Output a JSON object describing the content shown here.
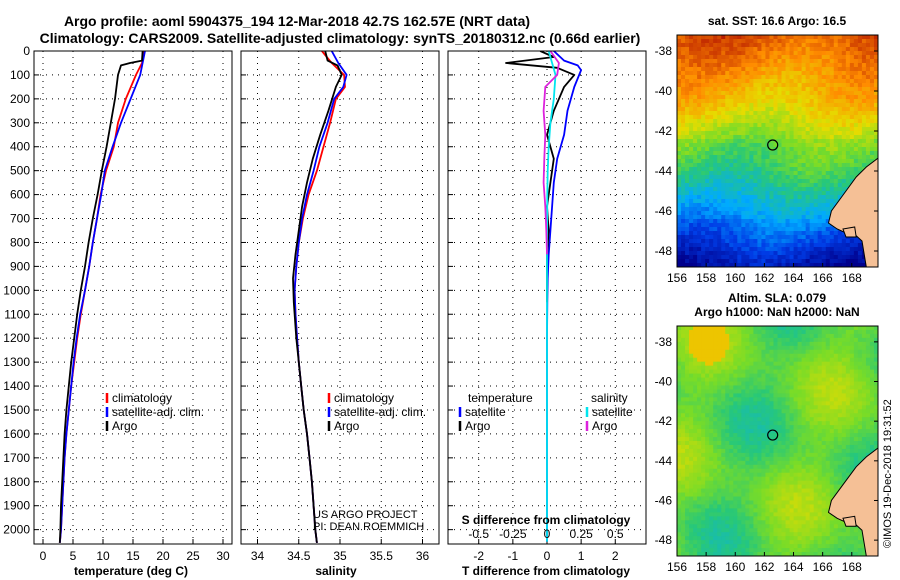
{
  "header": {
    "title_line1": "Argo profile: aoml 5904375_194 12-Mar-2018 42.7S 162.57E (NRT data)",
    "title_line2": "Climatology: CARS2009. Satellite-adjusted climatology: synTS_20180312.nc (0.66d earlier)"
  },
  "colors": {
    "climatology": "#ff0000",
    "satellite": "#0000ff",
    "argo": "#000000",
    "s_satellite": "#00e5ee",
    "s_argo": "#dd22dd",
    "dot_grid": "#000000",
    "land": "#f5c096"
  },
  "chart_data": [
    {
      "id": "temperature",
      "type": "line",
      "xlabel": "temperature (deg C)",
      "xlim": [
        -1.5,
        31.5
      ],
      "xticks": [
        0,
        5,
        10,
        15,
        20,
        25,
        30
      ],
      "ylim": [
        2060,
        0
      ],
      "yticks": [
        0,
        100,
        200,
        300,
        400,
        500,
        600,
        700,
        800,
        900,
        1000,
        1100,
        1200,
        1300,
        1400,
        1500,
        1600,
        1700,
        1800,
        1900,
        2000
      ],
      "grid": true,
      "legend": [
        "climatology",
        "satellite-adj. clim.",
        "Argo"
      ],
      "series": [
        {
          "name": "climatology",
          "color": "#ff0000",
          "x": [
            16.8,
            16.5,
            15.5,
            13.8,
            12.5,
            11.8,
            10.5,
            9.6,
            9.0,
            8.3,
            7.7,
            7.0,
            6.3,
            5.7,
            5.2,
            4.7,
            4.3,
            3.9,
            3.6,
            3.4,
            3.2,
            3.0,
            2.9,
            2.8
          ],
          "y": [
            0,
            50,
            100,
            200,
            300,
            400,
            500,
            600,
            700,
            800,
            900,
            1000,
            1100,
            1200,
            1300,
            1400,
            1500,
            1600,
            1700,
            1800,
            1900,
            2000,
            2030,
            2055
          ]
        },
        {
          "name": "satellite-adj. clim.",
          "color": "#0000ff",
          "x": [
            17.0,
            16.6,
            16.2,
            14.6,
            13.0,
            11.6,
            10.3,
            9.7,
            9.0,
            8.3,
            7.7,
            7.0,
            6.2,
            5.6,
            5.1,
            4.7,
            4.3,
            3.9,
            3.6,
            3.4,
            3.2,
            3.0,
            2.9,
            2.8
          ],
          "y": [
            0,
            50,
            100,
            200,
            300,
            400,
            500,
            600,
            700,
            800,
            900,
            1000,
            1100,
            1200,
            1300,
            1400,
            1500,
            1600,
            1700,
            1800,
            1900,
            2000,
            2030,
            2055
          ]
        },
        {
          "name": "Argo",
          "color": "#000000",
          "x": [
            16.6,
            16.5,
            14.5,
            13.0,
            12.5,
            12.0,
            11.3,
            10.6,
            9.8,
            9.1,
            8.3,
            7.6,
            7.0,
            6.3,
            5.7,
            5.2,
            4.7,
            4.3,
            3.9,
            3.6,
            3.4,
            3.2,
            3.0,
            2.9,
            2.8
          ],
          "y": [
            0,
            40,
            50,
            60,
            100,
            200,
            300,
            400,
            500,
            600,
            700,
            800,
            900,
            1000,
            1100,
            1200,
            1300,
            1400,
            1500,
            1600,
            1700,
            1800,
            1900,
            2000,
            2055
          ]
        }
      ]
    },
    {
      "id": "salinity",
      "type": "line",
      "xlabel": "salinity",
      "xlim": [
        33.8,
        36.2
      ],
      "xticks": [
        34,
        34.5,
        35,
        35.5,
        36
      ],
      "ylim": [
        2060,
        0
      ],
      "grid": true,
      "legend": [
        "climatology",
        "satellite-adj. clim.",
        "Argo"
      ],
      "series": [
        {
          "name": "climatology",
          "color": "#ff0000",
          "x": [
            34.78,
            34.9,
            35.05,
            35.06,
            34.95,
            34.88,
            34.8,
            34.72,
            34.62,
            34.55,
            34.5,
            34.47,
            34.45,
            34.46,
            34.48,
            34.5,
            34.53,
            34.56,
            34.6,
            34.63,
            34.66,
            34.68,
            34.7,
            34.72
          ],
          "y": [
            0,
            50,
            100,
            150,
            200,
            300,
            400,
            500,
            600,
            700,
            800,
            900,
            1000,
            1100,
            1200,
            1300,
            1400,
            1500,
            1600,
            1700,
            1800,
            1900,
            2000,
            2055
          ]
        },
        {
          "name": "satellite-adj. clim.",
          "color": "#0000ff",
          "x": [
            34.9,
            34.98,
            35.08,
            35.04,
            34.93,
            34.85,
            34.75,
            34.68,
            34.6,
            34.54,
            34.5,
            34.47,
            34.45,
            34.46,
            34.48,
            34.5,
            34.53,
            34.56,
            34.6,
            34.63,
            34.66,
            34.68,
            34.7,
            34.72
          ],
          "y": [
            0,
            50,
            100,
            150,
            200,
            300,
            400,
            500,
            600,
            700,
            800,
            900,
            1000,
            1100,
            1200,
            1300,
            1400,
            1500,
            1600,
            1700,
            1800,
            1900,
            2000,
            2055
          ]
        },
        {
          "name": "Argo",
          "color": "#000000",
          "x": [
            34.82,
            34.85,
            34.97,
            35.02,
            34.95,
            34.86,
            34.76,
            34.67,
            34.6,
            34.54,
            34.5,
            34.46,
            34.43,
            34.44,
            34.47,
            34.5,
            34.53,
            34.56,
            34.6,
            34.63,
            34.66,
            34.68,
            34.7,
            34.72
          ],
          "y": [
            0,
            40,
            60,
            100,
            150,
            250,
            350,
            450,
            550,
            650,
            750,
            850,
            950,
            1050,
            1200,
            1300,
            1400,
            1500,
            1600,
            1700,
            1800,
            1900,
            2000,
            2055
          ]
        }
      ]
    },
    {
      "id": "difference",
      "type": "line",
      "xlabel": "T difference from climatology",
      "xlim": [
        -2.9,
        2.9
      ],
      "xticks": [
        -2,
        -1,
        0,
        1,
        2
      ],
      "s_xlabel": "S difference from climatology",
      "s_ticks": [
        "-0.5",
        "-0.25",
        "0",
        "0.25",
        "0.5"
      ],
      "ylim": [
        2060,
        0
      ],
      "grid": true,
      "legend_t_header": "temperature",
      "legend_s_header": "salinity",
      "legend": [
        "satellite",
        "Argo",
        "satellite",
        "Argo"
      ],
      "series": [
        {
          "name": "T satellite",
          "color": "#0000ff",
          "x": [
            0.2,
            0.5,
            0.9,
            1.0,
            0.8,
            0.6,
            0.5,
            0.3,
            0.2,
            0.15,
            0.1,
            0.05,
            0.02,
            0.01,
            0,
            0,
            0
          ],
          "y": [
            0,
            40,
            60,
            80,
            150,
            250,
            350,
            450,
            550,
            650,
            750,
            850,
            950,
            1050,
            1200,
            1500,
            2050
          ]
        },
        {
          "name": "T Argo",
          "color": "#000000",
          "x": [
            -0.2,
            0.2,
            -1.2,
            0.3,
            0.8,
            0.5,
            0.2,
            0.0,
            0.2,
            0.1,
            0.0,
            0.05,
            0.0,
            0.0,
            0.0
          ],
          "y": [
            0,
            25,
            50,
            70,
            100,
            150,
            250,
            350,
            450,
            550,
            650,
            750,
            850,
            950,
            1050
          ]
        },
        {
          "name": "S satellite",
          "color": "#00e5ee",
          "x": [
            0.05,
            0.15,
            0.25,
            0.2,
            0.1,
            0.05,
            0.02,
            0.01,
            0,
            0,
            0
          ],
          "y": [
            0,
            50,
            100,
            200,
            300,
            400,
            500,
            600,
            800,
            1200,
            2050
          ]
        },
        {
          "name": "S Argo",
          "color": "#dd22dd",
          "x": [
            0.1,
            0.35,
            0.3,
            -0.05,
            -0.1,
            -0.05,
            -0.08,
            -0.1,
            -0.05,
            -0.02,
            0.0
          ],
          "y": [
            0,
            50,
            100,
            150,
            250,
            350,
            450,
            550,
            650,
            750,
            850
          ]
        }
      ]
    },
    {
      "id": "map_sst",
      "type": "heatmap",
      "title": "sat. SST: 16.6 Argo: 16.5",
      "xticks": [
        "156",
        "158",
        "160",
        "162",
        "164",
        "166",
        "168"
      ],
      "yticks": [
        "-38",
        "-40",
        "-42",
        "-44",
        "-46",
        "-48"
      ],
      "xlim": [
        156,
        169.8
      ],
      "ylim": [
        -48.8,
        -37.2
      ],
      "marker": {
        "lon": 162.57,
        "lat": -42.7
      }
    },
    {
      "id": "map_sla",
      "type": "heatmap",
      "title_line1": "Altim. SLA: 0.079",
      "title_line2": "Argo h1000: NaN h2000: NaN",
      "xticks": [
        "156",
        "158",
        "160",
        "162",
        "164",
        "166",
        "168"
      ],
      "yticks": [
        "-38",
        "-40",
        "-42",
        "-44",
        "-46",
        "-48"
      ],
      "xlim": [
        156,
        169.8
      ],
      "ylim": [
        -48.8,
        -37.2
      ],
      "marker": {
        "lon": 162.57,
        "lat": -42.7
      }
    }
  ],
  "annotations": {
    "project_line1": "US ARGO PROJECT",
    "project_line2": "PI: DEAN ROEMMICH",
    "stamp": "©IMOS 19-Dec-2018 19:31:52"
  }
}
